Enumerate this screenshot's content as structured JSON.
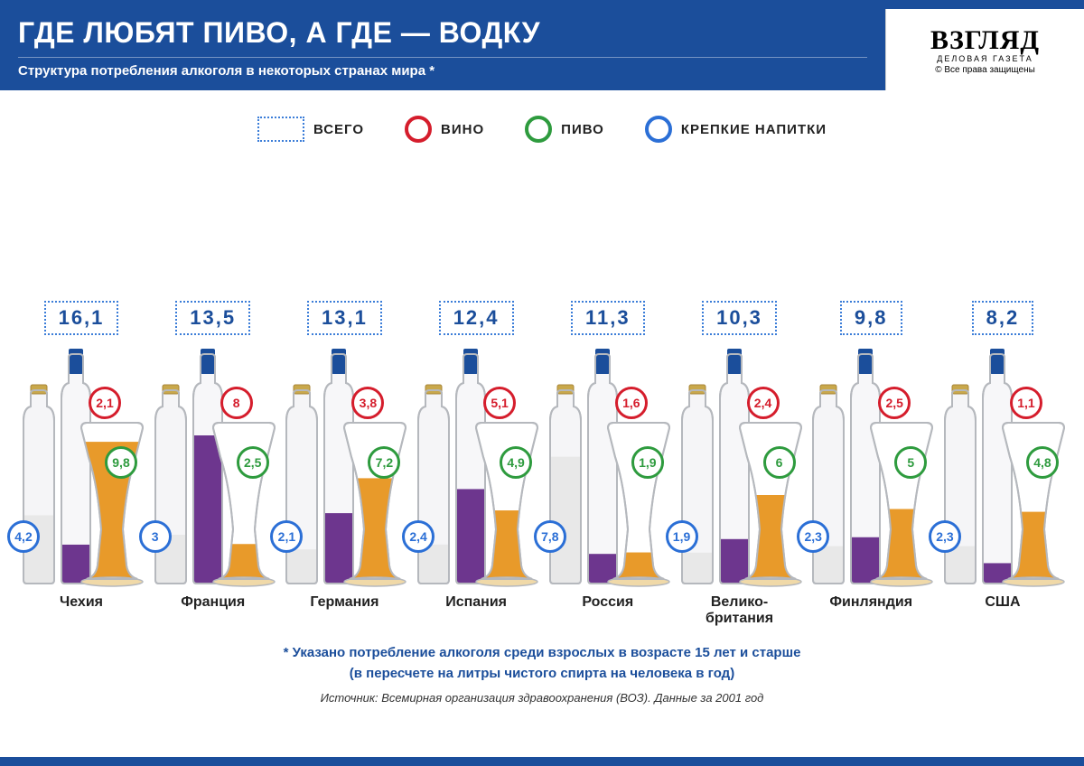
{
  "header": {
    "title": "ГДЕ ЛЮБЯТ ПИВО, А ГДЕ — ВОДКУ",
    "subtitle": "Структура потребления алкоголя в некоторых странах мира *",
    "brand": "ВЗГЛЯД",
    "brand_sub": "ДЕЛОВАЯ ГАЗЕТА",
    "brand_copy": "© Все права защищены"
  },
  "legend": {
    "total": "ВСЕГО",
    "wine": "ВИНО",
    "beer": "ПИВО",
    "spirits": "КРЕПКИЕ НАПИТКИ"
  },
  "colors": {
    "primary": "#1b4e9b",
    "wine": "#d51d2c",
    "beer": "#2e9b3e",
    "spirits": "#2b6fd6",
    "wine_fill": "#6d368e",
    "beer_fill": "#e89a2a",
    "spirits_fill": "#e8e8e8",
    "bottle_outline": "#b5b8bd",
    "gold": "#c9a84b"
  },
  "chart": {
    "type": "infographic",
    "max_value": 10,
    "countries": [
      {
        "name": "Чехия",
        "total": "16,1",
        "wine": "2,1",
        "beer": "9,8",
        "spirits": "4,2",
        "wine_v": 2.1,
        "beer_v": 9.8,
        "spirits_v": 4.2
      },
      {
        "name": "Франция",
        "total": "13,5",
        "wine": "8",
        "beer": "2,5",
        "spirits": "3",
        "wine_v": 8.0,
        "beer_v": 2.5,
        "spirits_v": 3.0
      },
      {
        "name": "Германия",
        "total": "13,1",
        "wine": "3,8",
        "beer": "7,2",
        "spirits": "2,1",
        "wine_v": 3.8,
        "beer_v": 7.2,
        "spirits_v": 2.1
      },
      {
        "name": "Испания",
        "total": "12,4",
        "wine": "5,1",
        "beer": "4,9",
        "spirits": "2,4",
        "wine_v": 5.1,
        "beer_v": 4.9,
        "spirits_v": 2.4
      },
      {
        "name": "Россия",
        "total": "11,3",
        "wine": "1,6",
        "beer": "1,9",
        "spirits": "7,8",
        "wine_v": 1.6,
        "beer_v": 1.9,
        "spirits_v": 7.8
      },
      {
        "name": "Велико-\nбритания",
        "total": "10,3",
        "wine": "2,4",
        "beer": "6",
        "spirits": "1,9",
        "wine_v": 2.4,
        "beer_v": 6.0,
        "spirits_v": 1.9
      },
      {
        "name": "Финляндия",
        "total": "9,8",
        "wine": "2,5",
        "beer": "5",
        "spirits": "2,3",
        "wine_v": 2.5,
        "beer_v": 5.0,
        "spirits_v": 2.3
      },
      {
        "name": "США",
        "total": "8,2",
        "wine": "1,1",
        "beer": "4,8",
        "spirits": "2,3",
        "wine_v": 1.1,
        "beer_v": 4.8,
        "spirits_v": 2.3
      }
    ]
  },
  "footer": {
    "note1": "* Указано потребление алкоголя среди взрослых в возрасте 15 лет и старше",
    "note2": "(в пересчете на литры чистого спирта на человека в год)",
    "source": "Источник: Всемирная организация здравоохранения (ВОЗ). Данные за 2001 год"
  }
}
